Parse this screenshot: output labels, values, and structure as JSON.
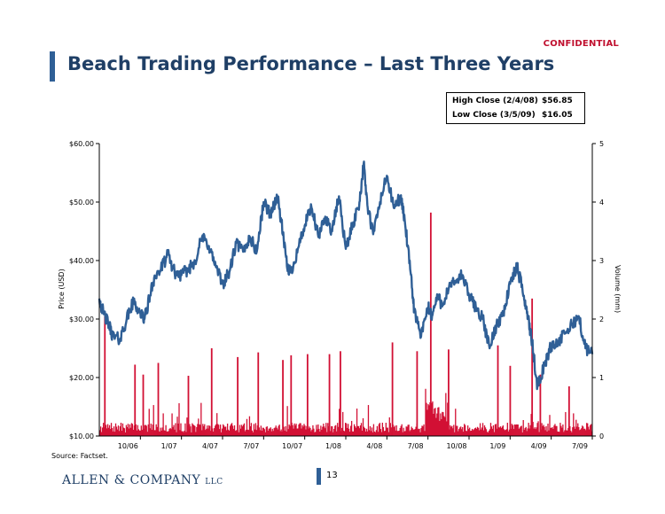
{
  "header": {
    "confidential": "CONFIDENTIAL",
    "title": "Beach Trading Performance – Last Three Years"
  },
  "stats": {
    "high_label": "High Close (2/4/08)",
    "high_value": "$56.85",
    "low_label": "Low Close (3/5/09)",
    "low_value": "$16.05"
  },
  "colors": {
    "price_line": "#2f5f96",
    "volume_bar": "#d21034",
    "title": "#1f3f66"
  },
  "chart_data": {
    "type": "line",
    "title": "",
    "ylabel": "Price (USD)",
    "y2label": "Volume (mm)",
    "ylim": [
      10,
      60
    ],
    "y2lim": [
      0,
      5
    ],
    "y_ticks": [
      "$10.00",
      "$20.00",
      "$30.00",
      "$40.00",
      "$50.00",
      "$60.00"
    ],
    "y2_ticks": [
      "0",
      "1",
      "2",
      "3",
      "4",
      "5"
    ],
    "x_ticks": [
      "10/06",
      "1/07",
      "4/07",
      "7/07",
      "10/07",
      "1/08",
      "4/08",
      "7/08",
      "10/08",
      "1/09",
      "4/09",
      "7/09"
    ],
    "x_range_months": [
      0,
      36
    ],
    "x_tick_months": [
      3,
      6,
      9,
      12,
      15,
      18,
      21,
      24,
      27,
      30,
      33,
      36
    ],
    "series": [
      {
        "name": "Price (USD)",
        "axis": "left",
        "months": [
          0,
          0.3,
          0.7,
          1,
          1.5,
          2,
          2.5,
          3,
          3.3,
          3.7,
          4,
          4.5,
          5,
          5.5,
          6,
          6.5,
          7,
          7.5,
          8,
          8.5,
          9,
          9.5,
          10,
          10.5,
          11,
          11.5,
          12,
          12.5,
          13,
          13.3,
          13.7,
          14,
          14.5,
          15,
          15.5,
          16,
          16.5,
          17,
          17.5,
          18,
          18.5,
          19,
          19.3,
          19.6,
          20,
          20.5,
          21,
          21.5,
          22,
          22.3,
          22.7,
          23,
          23.5,
          24,
          24.3,
          24.7,
          25,
          25.5,
          26,
          26.5,
          27,
          27.5,
          28,
          28.5,
          29,
          29.5,
          30,
          30.5,
          31,
          31.3,
          31.6,
          32,
          32.5,
          33,
          33.5,
          34,
          34.5,
          35,
          35.5,
          36
        ],
        "values": [
          33.5,
          31,
          29,
          27,
          26.5,
          30,
          33,
          31,
          30,
          34,
          37,
          38.5,
          41,
          38,
          37.5,
          38.5,
          40,
          44,
          42.5,
          39,
          36,
          38,
          43,
          41.5,
          44,
          41.5,
          50,
          48,
          51,
          46.5,
          39,
          38,
          42,
          46,
          49,
          44,
          47.5,
          45,
          51,
          42,
          46,
          50,
          56.5,
          49,
          44.5,
          50,
          54.5,
          49,
          51,
          47,
          38.5,
          31.5,
          27,
          32,
          30.5,
          34,
          32.5,
          35,
          36.5,
          37.5,
          34,
          32,
          30,
          25,
          29,
          31,
          36,
          39,
          34,
          30.5,
          26,
          18.5,
          22,
          25.5,
          26,
          27.5,
          29,
          30.5,
          25,
          24
        ]
      },
      {
        "name": "Volume (mm)",
        "axis": "right",
        "type": "bar",
        "baseline_mm": 0.12,
        "spikes": [
          {
            "month": 0.4,
            "value": 2.05
          },
          {
            "month": 2.6,
            "value": 1.22
          },
          {
            "month": 3.2,
            "value": 1.05
          },
          {
            "month": 4.3,
            "value": 1.25
          },
          {
            "month": 6.5,
            "value": 1.03
          },
          {
            "month": 8.2,
            "value": 1.5
          },
          {
            "month": 10.1,
            "value": 1.35
          },
          {
            "month": 11.6,
            "value": 1.43
          },
          {
            "month": 13.4,
            "value": 1.3
          },
          {
            "month": 14.0,
            "value": 1.38
          },
          {
            "month": 15.2,
            "value": 1.4
          },
          {
            "month": 16.8,
            "value": 1.4
          },
          {
            "month": 17.6,
            "value": 1.45
          },
          {
            "month": 21.4,
            "value": 1.6
          },
          {
            "month": 23.2,
            "value": 1.45
          },
          {
            "month": 24.2,
            "value": 3.82
          },
          {
            "month": 25.5,
            "value": 1.48
          },
          {
            "month": 29.1,
            "value": 1.55
          },
          {
            "month": 30.0,
            "value": 1.2
          },
          {
            "month": 31.6,
            "value": 2.35
          },
          {
            "month": 32.2,
            "value": 1.05
          },
          {
            "month": 34.3,
            "value": 0.85
          }
        ]
      }
    ]
  },
  "footer": {
    "source": "Source:  Factset.",
    "logo_main": "ALLEN & COMPANY",
    "logo_suffix": "LLC",
    "page": "13"
  }
}
